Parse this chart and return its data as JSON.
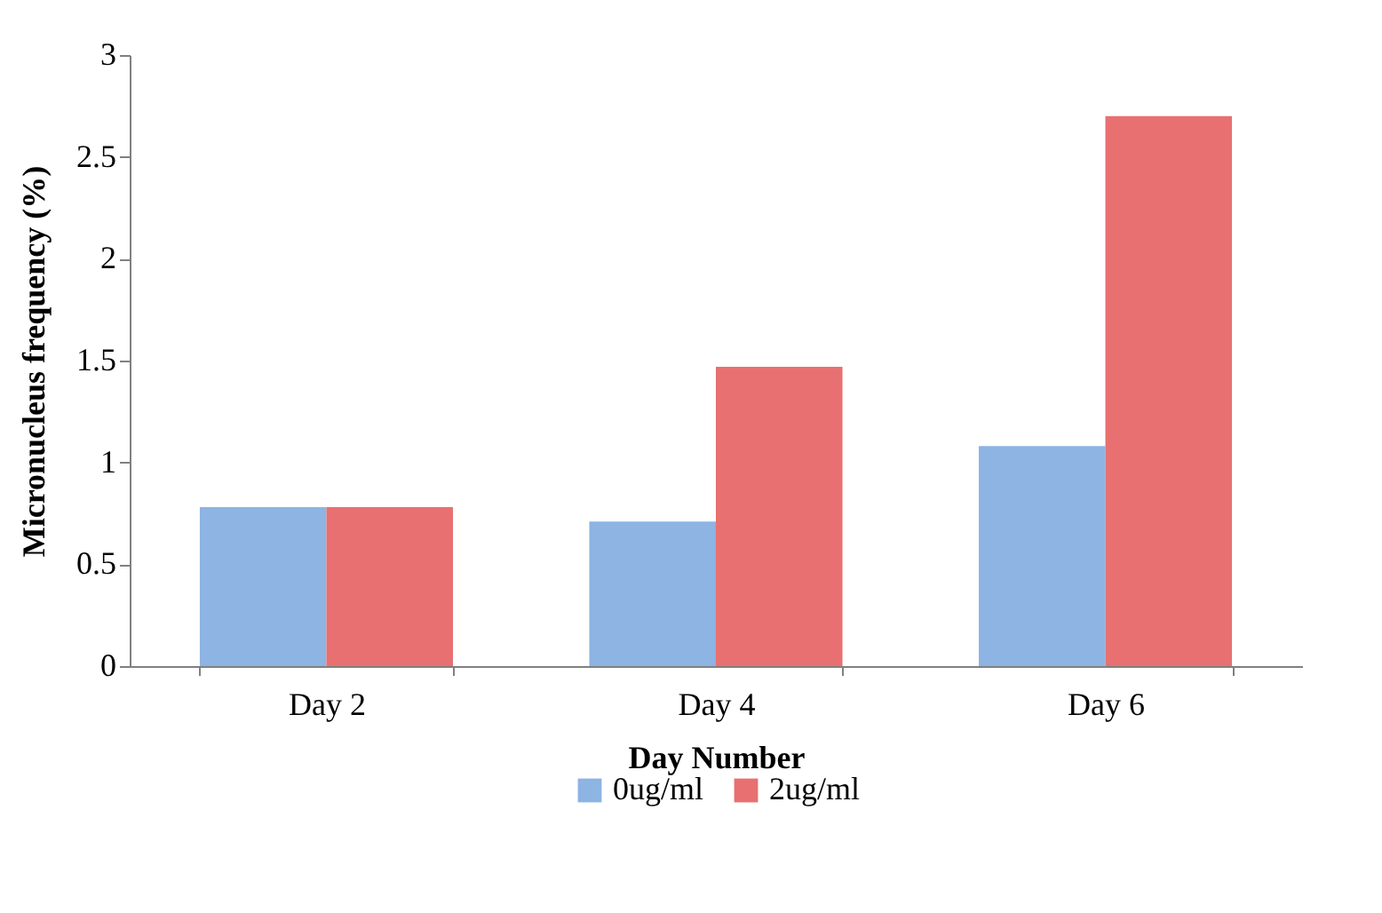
{
  "chart_data": {
    "type": "bar",
    "xlabel": "Day Number",
    "ylabel": "Micronucleus frequency (%)",
    "categories": [
      "Day 2",
      "Day 4",
      "Day 6"
    ],
    "series": [
      {
        "name": "0ug/ml",
        "color": "#8db4e2",
        "values": [
          0.78,
          0.71,
          1.08
        ]
      },
      {
        "name": "2ug/ml",
        "color": "#e87070",
        "values": [
          0.78,
          1.47,
          2.7
        ]
      }
    ],
    "ylim": [
      0,
      3
    ],
    "yticks": [
      0,
      0.5,
      1,
      1.5,
      2,
      2.5,
      3
    ],
    "grid": false,
    "legend": "bottom"
  }
}
